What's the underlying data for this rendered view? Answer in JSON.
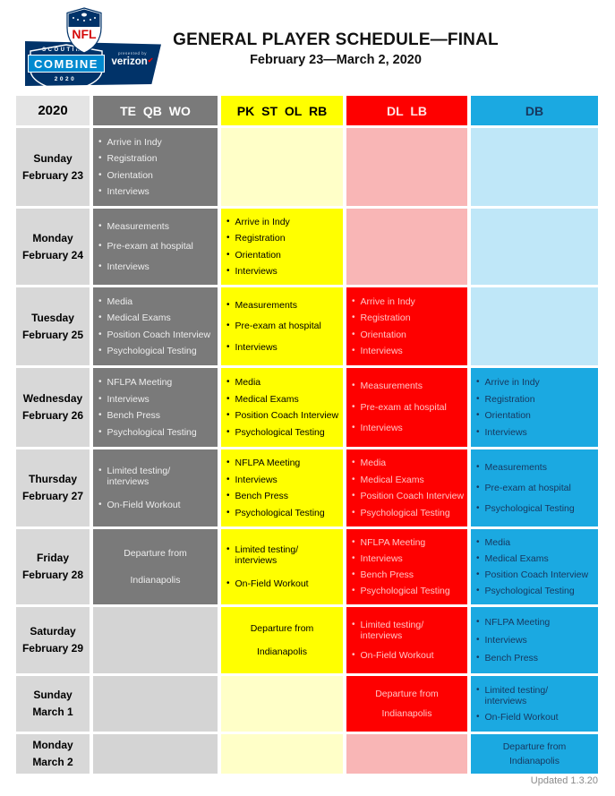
{
  "logo": {
    "nfl": "NFL",
    "scouting": "SCOUTING",
    "combine": "COMBINE",
    "year": "2020",
    "presented_by": "presented by",
    "sponsor": "verizon",
    "navy": "#013369",
    "bright_blue": "#0089CF",
    "nfl_red": "#D50A0A"
  },
  "icons": {
    "bullet": "•",
    "verizon_check": "✔"
  },
  "header": {
    "title": "GENERAL PLAYER SCHEDULE—FINAL",
    "subtitle": "February 23—March 2, 2020"
  },
  "table": {
    "year_header": "2020",
    "day_column": {
      "header_bg": "#E4E4E4",
      "cell_bg": "#D8D8D8"
    },
    "columns": [
      {
        "id": "te-qb-wo",
        "label": "TE QB WO",
        "header_bg": "#7A7A7A",
        "header_text": "#FFFFFF",
        "active_bg": "#7A7A7A",
        "inactive_bg": "#D4D4D4",
        "item_text": "#EDEDED"
      },
      {
        "id": "pk-st-ol-rb",
        "label": "PK ST OL RB",
        "header_bg": "#FFFF00",
        "header_text": "#000000",
        "active_bg": "#FFFF00",
        "inactive_bg": "#FFFFC8",
        "item_text": "#000000"
      },
      {
        "id": "dl-lb",
        "label": "DL LB",
        "header_bg": "#FE0000",
        "header_text": "#FFE3E3",
        "active_bg": "#FE0000",
        "inactive_bg": "#F9B6B6",
        "item_text": "#FFC4C4"
      },
      {
        "id": "db",
        "label": "DB",
        "header_bg": "#1BA9E1",
        "header_text": "#17375E",
        "active_bg": "#1BA9E1",
        "inactive_bg": "#BFE7F8",
        "item_text": "#17375E"
      }
    ],
    "rows": [
      {
        "day": "Sunday",
        "date": "February 23",
        "cells": [
          {
            "state": "active",
            "items": [
              "Arrive in Indy",
              "Registration",
              "Orientation",
              "Interviews"
            ]
          },
          {
            "state": "inactive"
          },
          {
            "state": "inactive"
          },
          {
            "state": "inactive"
          }
        ]
      },
      {
        "day": "Monday",
        "date": "February 24",
        "cells": [
          {
            "state": "active",
            "items": [
              "Measurements",
              "Pre-exam at hospital",
              "Interviews"
            ]
          },
          {
            "state": "active",
            "items": [
              "Arrive in Indy",
              "Registration",
              "Orientation",
              "Interviews"
            ]
          },
          {
            "state": "inactive"
          },
          {
            "state": "inactive"
          }
        ]
      },
      {
        "day": "Tuesday",
        "date": "February 25",
        "cells": [
          {
            "state": "active",
            "items": [
              "Media",
              "Medical Exams",
              "Position Coach Interview",
              "Psychological Testing"
            ]
          },
          {
            "state": "active",
            "items": [
              "Measurements",
              "Pre-exam at hospital",
              "Interviews"
            ]
          },
          {
            "state": "active",
            "items": [
              "Arrive in Indy",
              "Registration",
              "Orientation",
              "Interviews"
            ]
          },
          {
            "state": "inactive"
          }
        ]
      },
      {
        "day": "Wednesday",
        "date": "February 26",
        "cells": [
          {
            "state": "active",
            "items": [
              "NFLPA Meeting",
              "Interviews",
              "Bench Press",
              "Psychological Testing"
            ]
          },
          {
            "state": "active",
            "items": [
              "Media",
              "Medical Exams",
              "Position Coach Interview",
              "Psychological Testing"
            ]
          },
          {
            "state": "active",
            "items": [
              "Measurements",
              "Pre-exam at hospital",
              "Interviews"
            ]
          },
          {
            "state": "active",
            "items": [
              "Arrive in Indy",
              "Registration",
              "Orientation",
              "Interviews"
            ]
          }
        ]
      },
      {
        "day": "Thursday",
        "date": "February 27",
        "cells": [
          {
            "state": "active",
            "items": [
              "Limited testing/\ninterviews",
              "On-Field Workout"
            ]
          },
          {
            "state": "active",
            "items": [
              "NFLPA Meeting",
              "Interviews",
              "Bench Press",
              "Psychological Testing"
            ]
          },
          {
            "state": "active",
            "items": [
              "Media",
              "Medical Exams",
              "Position Coach Interview",
              "Psychological Testing"
            ]
          },
          {
            "state": "active",
            "items": [
              "Measurements",
              "Pre-exam at hospital",
              "Psychological Testing"
            ]
          }
        ]
      },
      {
        "day": "Friday",
        "date": "February 28",
        "cells": [
          {
            "state": "active",
            "center": [
              "Departure from",
              "Indianapolis"
            ]
          },
          {
            "state": "active",
            "items": [
              "Limited testing/\ninterviews",
              "On-Field Workout"
            ]
          },
          {
            "state": "active",
            "items": [
              "NFLPA Meeting",
              "Interviews",
              "Bench Press",
              "Psychological Testing"
            ]
          },
          {
            "state": "active",
            "items": [
              "Media",
              "Medical Exams",
              "Position Coach Interview",
              "Psychological Testing"
            ]
          }
        ]
      },
      {
        "day": "Saturday",
        "date": "February 29",
        "cells": [
          {
            "state": "inactive"
          },
          {
            "state": "active",
            "center": [
              "Departure from",
              "Indianapolis"
            ]
          },
          {
            "state": "active",
            "items": [
              "Limited testing/\ninterviews",
              "On-Field Workout"
            ]
          },
          {
            "state": "active",
            "items": [
              "NFLPA Meeting",
              "Interviews",
              "Bench Press"
            ]
          }
        ]
      },
      {
        "day": "Sunday",
        "date": "March 1",
        "cells": [
          {
            "state": "inactive"
          },
          {
            "state": "inactive"
          },
          {
            "state": "active",
            "center": [
              "Departure from",
              "Indianapolis"
            ]
          },
          {
            "state": "active",
            "items": [
              "Limited testing/\ninterviews",
              "On-Field Workout"
            ]
          }
        ]
      },
      {
        "day": "Monday",
        "date": "March 2",
        "cells": [
          {
            "state": "inactive"
          },
          {
            "state": "inactive"
          },
          {
            "state": "inactive"
          },
          {
            "state": "active",
            "center": [
              "Departure from",
              "Indianapolis"
            ]
          }
        ]
      }
    ]
  },
  "footer": {
    "updated": "Updated 1.3.20"
  }
}
